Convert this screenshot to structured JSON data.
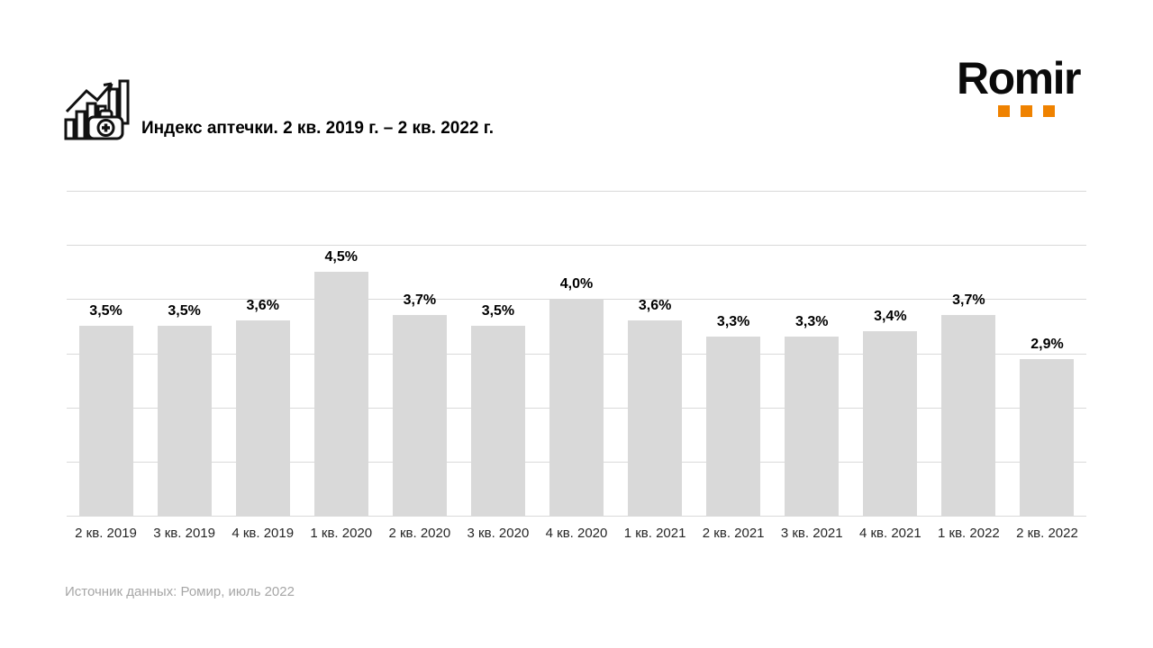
{
  "header": {
    "title": "Индекс аптечки. 2 кв. 2019 г. – 2 кв. 2022 г.",
    "icon": "bar-chart-with-medkit-icon"
  },
  "logo": {
    "text": "Romir",
    "dot_color": "#EF8200"
  },
  "chart_data": {
    "type": "bar",
    "title": "Индекс аптечки. 2 кв. 2019 г. – 2 кв. 2022 г.",
    "categories": [
      "2 кв. 2019",
      "3 кв. 2019",
      "4 кв. 2019",
      "1 кв. 2020",
      "2 кв. 2020",
      "3 кв. 2020",
      "4 кв. 2020",
      "1 кв. 2021",
      "2 кв. 2021",
      "3 кв. 2021",
      "4 кв. 2021",
      "1 кв. 2022",
      "2 кв. 2022"
    ],
    "values": [
      3.5,
      3.5,
      3.6,
      4.5,
      3.7,
      3.5,
      4.0,
      3.6,
      3.3,
      3.3,
      3.4,
      3.7,
      2.9
    ],
    "labels": [
      "3,5%",
      "3,5%",
      "3,6%",
      "4,5%",
      "3,7%",
      "3,5%",
      "4,0%",
      "3,6%",
      "3,3%",
      "3,3%",
      "3,4%",
      "3,7%",
      "2,9%"
    ],
    "xlabel": "",
    "ylabel": "",
    "ylim": [
      0,
      6
    ],
    "grid_step": 1,
    "grid": true,
    "legend": false,
    "bar_color": "#d9d9d9",
    "value_label_color": "#000000"
  },
  "footer": {
    "source": "Источник данных: Ромир, июль 2022"
  }
}
